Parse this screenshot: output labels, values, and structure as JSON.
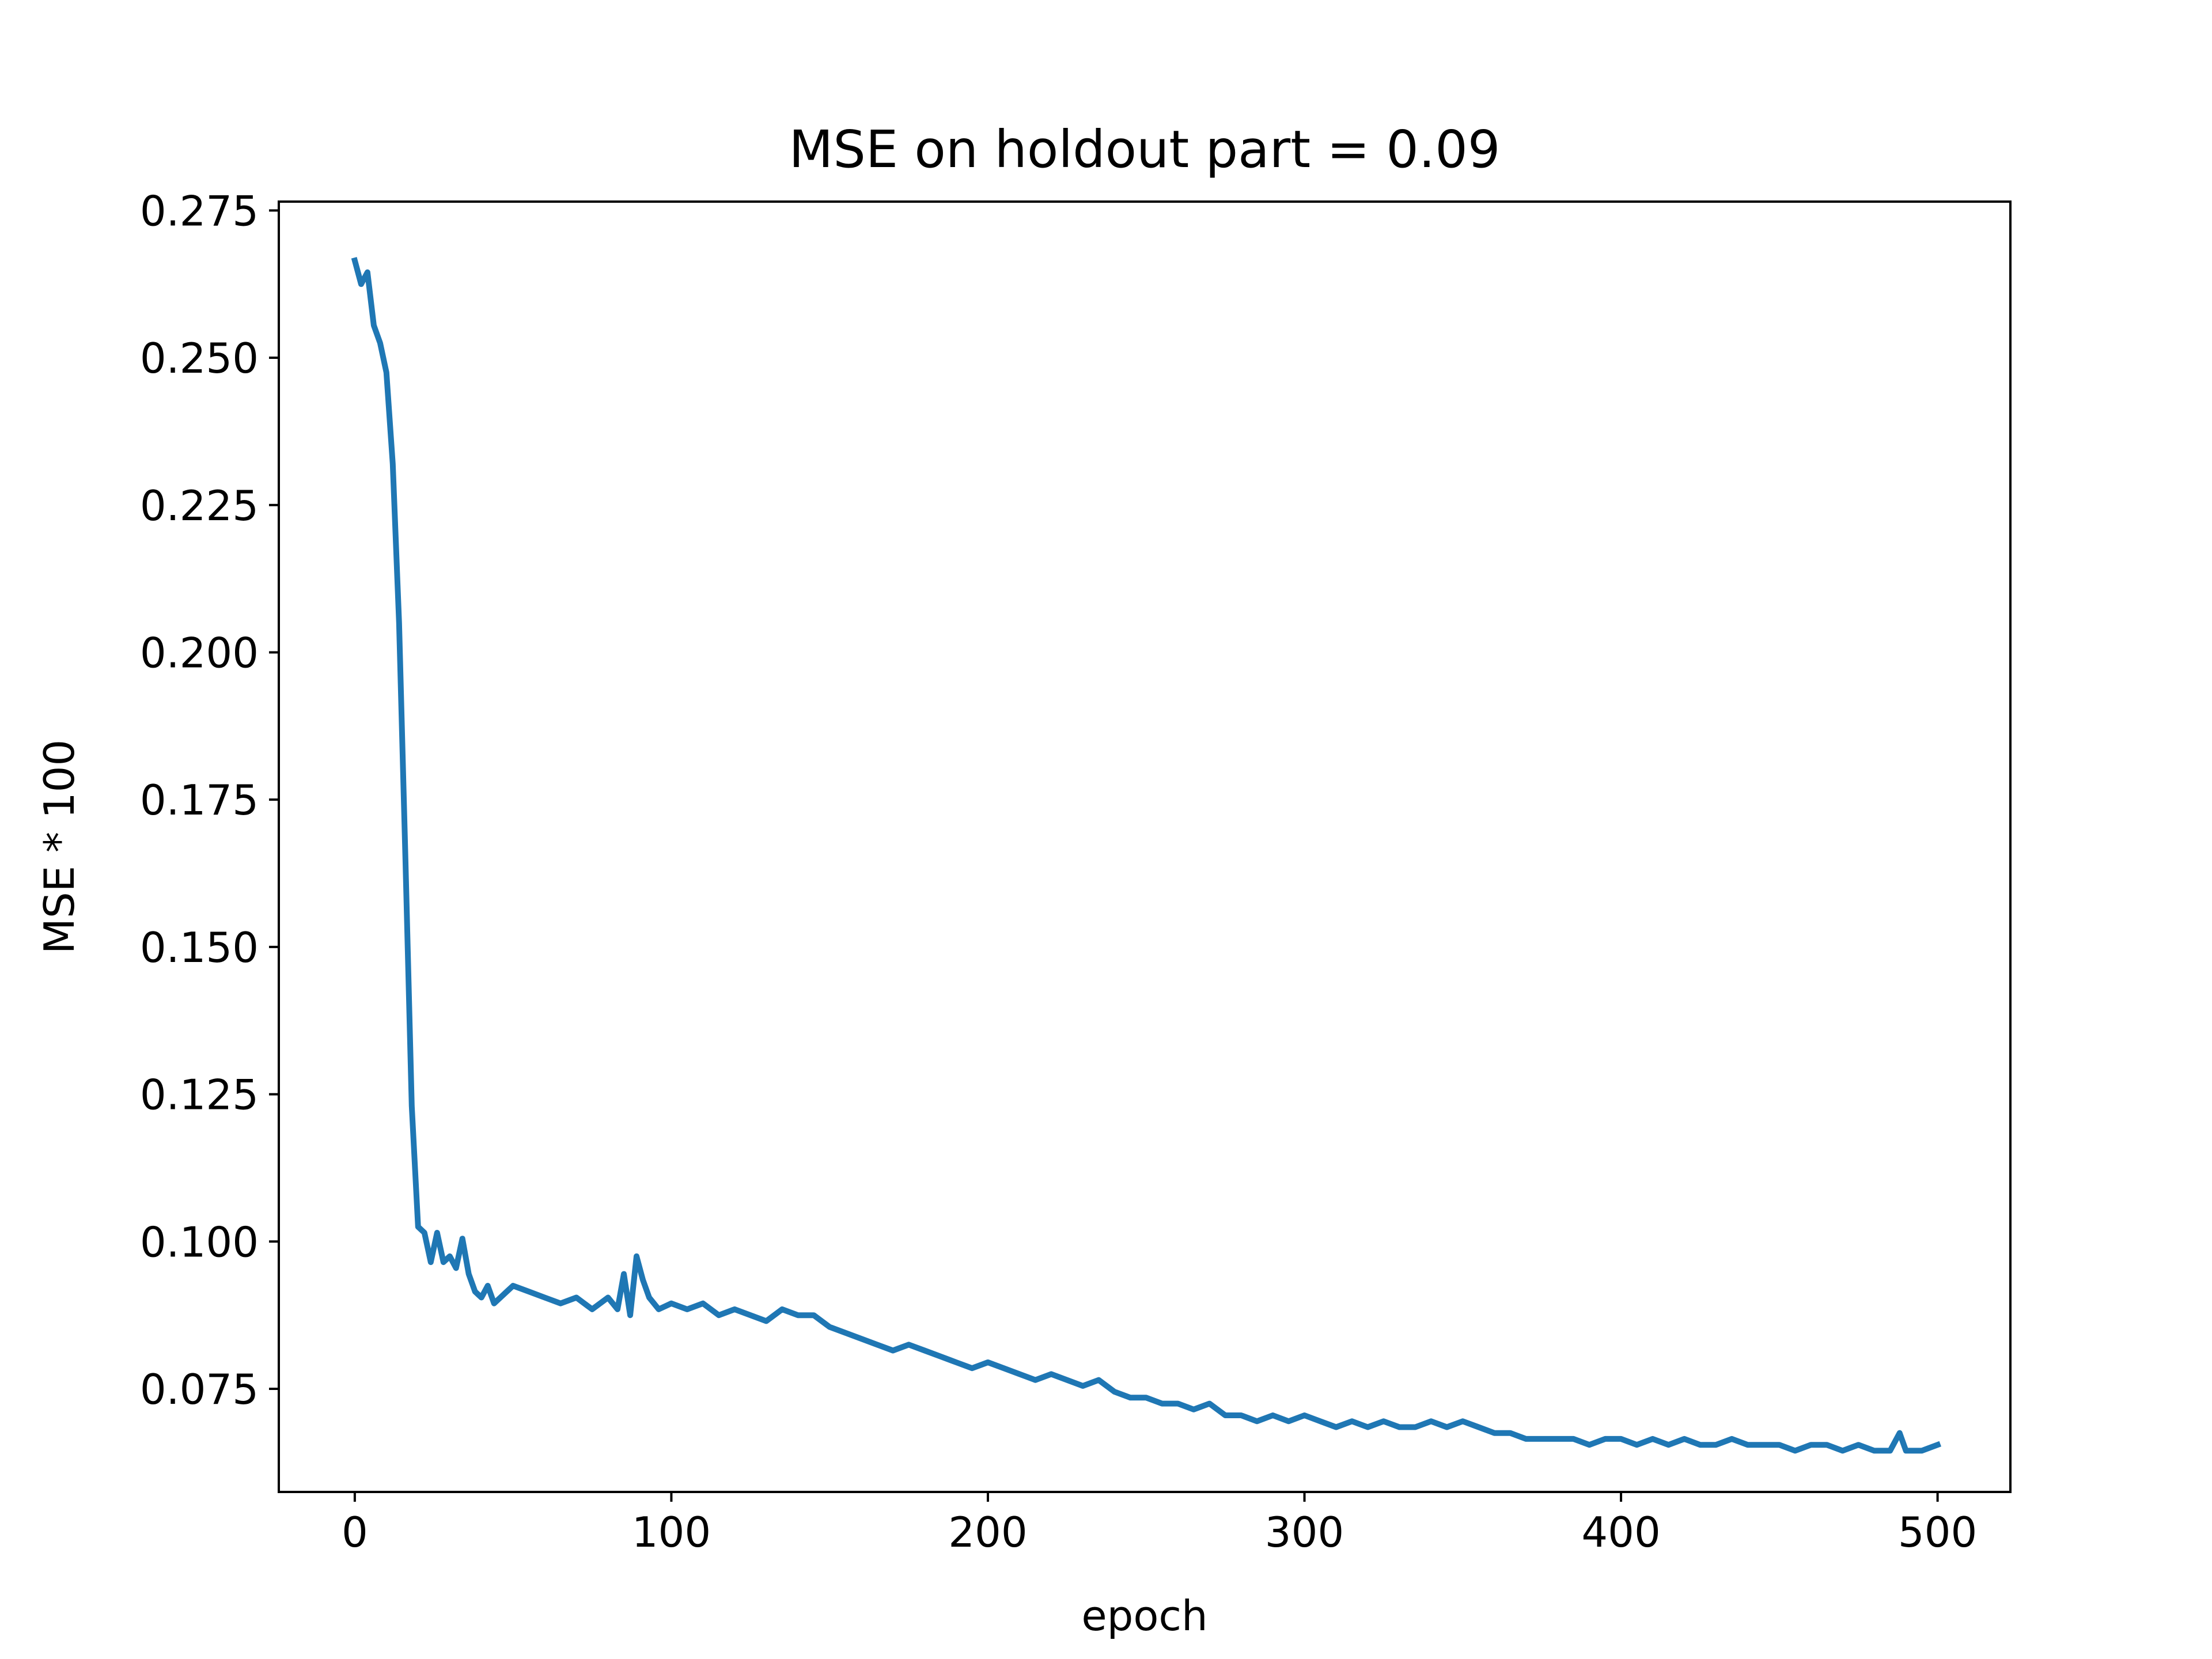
{
  "chart_data": {
    "type": "line",
    "title": "MSE on holdout part = 0.09",
    "xlabel": "epoch",
    "ylabel": "MSE * 100",
    "xlim": [
      -24,
      523
    ],
    "ylim": [
      0.0575,
      0.2765
    ],
    "xticks": [
      0,
      100,
      200,
      300,
      400,
      500
    ],
    "yticks": [
      0.075,
      0.1,
      0.125,
      0.15,
      0.175,
      0.2,
      0.225,
      0.25,
      0.275
    ],
    "xtick_labels": [
      "0",
      "100",
      "200",
      "300",
      "400",
      "500"
    ],
    "ytick_labels": [
      "0.075",
      "0.100",
      "0.125",
      "0.150",
      "0.175",
      "0.200",
      "0.225",
      "0.250",
      "0.275"
    ],
    "grid": false,
    "legend": "none",
    "line_color": "#1f77b4",
    "series": [
      {
        "x": [
          0,
          2,
          4,
          6,
          8,
          10,
          12,
          14,
          16,
          18,
          20,
          22,
          24,
          26,
          28,
          30,
          32,
          34,
          36,
          38,
          40,
          42,
          44,
          46,
          48,
          50,
          55,
          60,
          65,
          70,
          75,
          80,
          83,
          85,
          87,
          89,
          91,
          93,
          96,
          100,
          105,
          110,
          115,
          120,
          125,
          130,
          135,
          140,
          145,
          150,
          155,
          160,
          165,
          170,
          175,
          180,
          185,
          190,
          195,
          200,
          205,
          210,
          215,
          220,
          225,
          230,
          235,
          240,
          245,
          250,
          255,
          260,
          265,
          270,
          275,
          280,
          285,
          290,
          295,
          300,
          305,
          310,
          315,
          320,
          325,
          330,
          335,
          340,
          345,
          350,
          355,
          360,
          365,
          370,
          375,
          380,
          385,
          390,
          395,
          400,
          405,
          410,
          415,
          420,
          425,
          430,
          435,
          440,
          445,
          450,
          455,
          460,
          465,
          470,
          475,
          480,
          485,
          488,
          490,
          495,
          500
        ],
        "y": [
          0.2665,
          0.2625,
          0.2645,
          0.2555,
          0.2525,
          0.2475,
          0.232,
          0.205,
          0.165,
          0.123,
          0.1025,
          0.1015,
          0.0965,
          0.1015,
          0.0965,
          0.0975,
          0.0955,
          0.1005,
          0.0945,
          0.0915,
          0.0905,
          0.0925,
          0.0895,
          0.0905,
          0.0915,
          0.0925,
          0.0915,
          0.0905,
          0.0895,
          0.0905,
          0.0885,
          0.0905,
          0.0885,
          0.0945,
          0.0875,
          0.0975,
          0.0935,
          0.0905,
          0.0885,
          0.0895,
          0.0885,
          0.0895,
          0.0875,
          0.0885,
          0.0875,
          0.0865,
          0.0885,
          0.0875,
          0.0875,
          0.0855,
          0.0845,
          0.0835,
          0.0825,
          0.0815,
          0.0825,
          0.0815,
          0.0805,
          0.0795,
          0.0785,
          0.0795,
          0.0785,
          0.0775,
          0.0765,
          0.0775,
          0.0765,
          0.0755,
          0.0765,
          0.0745,
          0.0735,
          0.0735,
          0.0725,
          0.0725,
          0.0715,
          0.0725,
          0.0705,
          0.0705,
          0.0695,
          0.0705,
          0.0695,
          0.0705,
          0.0695,
          0.0685,
          0.0695,
          0.0685,
          0.0695,
          0.0685,
          0.0685,
          0.0695,
          0.0685,
          0.0695,
          0.0685,
          0.0675,
          0.0675,
          0.0665,
          0.0665,
          0.0665,
          0.0665,
          0.0655,
          0.0665,
          0.0665,
          0.0655,
          0.0665,
          0.0655,
          0.0665,
          0.0655,
          0.0655,
          0.0665,
          0.0655,
          0.0655,
          0.0655,
          0.0645,
          0.0655,
          0.0655,
          0.0645,
          0.0655,
          0.0645,
          0.0645,
          0.0675,
          0.0645,
          0.0645,
          0.0655
        ]
      }
    ]
  }
}
